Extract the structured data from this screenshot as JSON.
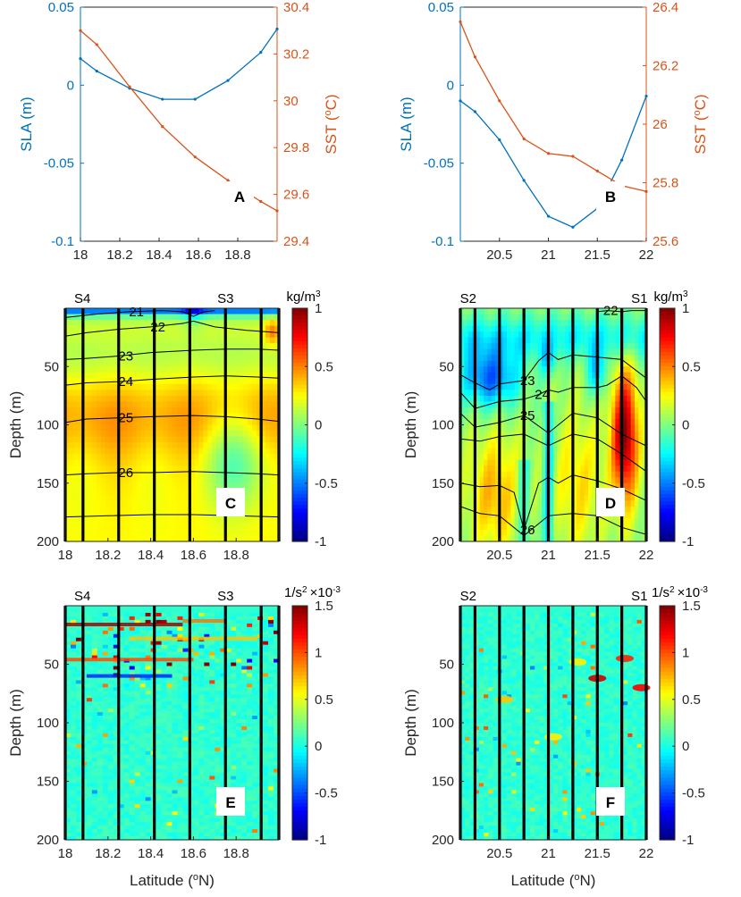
{
  "colors": {
    "sla": "#0072BD",
    "sst": "#D95319",
    "axis": "#262626",
    "contour": "#000000",
    "station": "#000000"
  },
  "shared": {
    "latitude_label": "Latitude (",
    "latitude_sup": "o",
    "latitude_unit": "N)",
    "sla_label": "SLA (m)",
    "sst_label_prefix": "SST (",
    "sst_label_sup": "o",
    "sst_label_suffix": "C)",
    "depth_label": "Depth (m)",
    "density_colorbar_unit": "kg/m",
    "density_colorbar_sup": "3",
    "n2_colorbar_unit": "1/s",
    "n2_colorbar_sup": "2",
    "n2_colorbar_scale": "×10",
    "n2_colorbar_scale_sup": "-3"
  },
  "chart_data": [
    {
      "panel": "A",
      "type": "line",
      "xlim": [
        18,
        19
      ],
      "xticks": [
        "18",
        "18.2",
        "18.4",
        "18.6",
        "18.8"
      ],
      "y_left": {
        "label": "SLA (m)",
        "ylim": [
          -0.1,
          0.05
        ],
        "ticks": [
          "0.05",
          "0",
          "-0.05",
          "-0.1"
        ]
      },
      "y_right": {
        "label": "SST (oC)",
        "ylim": [
          29.4,
          30.4
        ],
        "ticks": [
          "30.4",
          "30.2",
          "30",
          "29.8",
          "29.6",
          "29.4"
        ]
      },
      "series": [
        {
          "name": "SLA",
          "axis": "left",
          "x": [
            18.0,
            18.083,
            18.25,
            18.417,
            18.583,
            18.75,
            18.917,
            19.0
          ],
          "values": [
            0.017,
            0.009,
            -0.002,
            -0.009,
            -0.009,
            0.003,
            0.021,
            0.036
          ]
        },
        {
          "name": "SST",
          "axis": "right",
          "x": [
            18.0,
            18.083,
            18.25,
            18.417,
            18.583,
            18.75,
            18.917,
            19.0
          ],
          "values": [
            30.3,
            30.24,
            30.06,
            29.89,
            29.76,
            29.66,
            29.57,
            29.53
          ]
        }
      ]
    },
    {
      "panel": "B",
      "type": "line",
      "xlim": [
        20.1,
        22
      ],
      "xticks": [
        "20.5",
        "21",
        "21.5",
        "22"
      ],
      "y_left": {
        "label": "SLA (m)",
        "ylim": [
          -0.1,
          0.05
        ],
        "ticks": [
          "0.05",
          "0",
          "-0.05",
          "-0.1"
        ]
      },
      "y_right": {
        "label": "SST (oC)",
        "ylim": [
          25.6,
          26.4
        ],
        "ticks": [
          "26.4",
          "26.2",
          "26",
          "25.8",
          "25.6"
        ]
      },
      "series": [
        {
          "name": "SLA",
          "axis": "left",
          "x": [
            20.1,
            20.25,
            20.5,
            20.75,
            21.0,
            21.25,
            21.5,
            21.75,
            22.0
          ],
          "values": [
            -0.01,
            -0.017,
            -0.035,
            -0.061,
            -0.084,
            -0.091,
            -0.079,
            -0.048,
            -0.007
          ]
        },
        {
          "name": "SST",
          "axis": "right",
          "x": [
            20.1,
            20.25,
            20.5,
            20.75,
            21.0,
            21.25,
            21.5,
            21.75,
            22.0
          ],
          "values": [
            26.35,
            26.23,
            26.08,
            25.95,
            25.9,
            25.89,
            25.84,
            25.79,
            25.77
          ]
        }
      ]
    },
    {
      "panel": "C",
      "type": "heatmap",
      "field": "density anomaly",
      "xlim": [
        18,
        19
      ],
      "ylim": [
        0,
        200
      ],
      "xticks": [
        "18",
        "18.2",
        "18.4",
        "18.6",
        "18.8"
      ],
      "yticks": [
        "50",
        "100",
        "150",
        "200"
      ],
      "clim": [
        -1,
        1
      ],
      "colorbar_ticks": [
        "1",
        "0.5",
        "0",
        "-0.5",
        "-1"
      ],
      "stations": [
        18.0,
        18.083,
        18.25,
        18.417,
        18.583,
        18.75,
        18.917,
        19.0
      ],
      "station_labels": [
        {
          "name": "S4",
          "x": 18.08
        },
        {
          "name": "S3",
          "x": 18.75
        }
      ],
      "contours": [
        {
          "label": "21",
          "x": [
            18.0,
            18.15,
            18.3,
            18.45,
            18.55,
            18.6,
            18.65,
            18.7
          ],
          "depth": [
            8,
            5,
            3,
            2,
            3,
            7,
            3,
            2
          ]
        },
        {
          "label": "22",
          "x": [
            18.0,
            18.1,
            18.25,
            18.4,
            18.55,
            18.6,
            18.7,
            18.85,
            19.0
          ],
          "depth": [
            24,
            21,
            18,
            16,
            13,
            11,
            16,
            19,
            21
          ]
        },
        {
          "label": "23",
          "x": [
            18.0,
            18.1,
            18.25,
            18.4,
            18.6,
            18.75,
            18.9,
            19.0
          ],
          "depth": [
            44,
            43,
            41,
            38,
            36,
            35,
            35,
            36
          ]
        },
        {
          "label": "24",
          "x": [
            18.0,
            18.1,
            18.25,
            18.4,
            18.6,
            18.75,
            18.9,
            19.0
          ],
          "depth": [
            66,
            64,
            63,
            61,
            59,
            58,
            59,
            60
          ]
        },
        {
          "label": "25",
          "x": [
            18.0,
            18.1,
            18.25,
            18.4,
            18.6,
            18.75,
            18.9,
            19.0
          ],
          "depth": [
            98,
            95,
            94,
            93,
            92,
            93,
            95,
            97
          ]
        },
        {
          "label": "26",
          "x": [
            18.0,
            18.1,
            18.25,
            18.4,
            18.6,
            18.75,
            18.9,
            19.0
          ],
          "depth": [
            143,
            142,
            141,
            141,
            140,
            141,
            142,
            143
          ]
        },
        {
          "label": "",
          "x": [
            18.0,
            18.2,
            18.4,
            18.6,
            18.8,
            19.0
          ],
          "depth": [
            179,
            178,
            177,
            177,
            178,
            179
          ]
        }
      ]
    },
    {
      "panel": "D",
      "type": "heatmap",
      "field": "density anomaly",
      "xlim": [
        20.1,
        22
      ],
      "ylim": [
        0,
        200
      ],
      "xticks": [
        "20.5",
        "21",
        "21.5",
        "22"
      ],
      "yticks": [
        "50",
        "100",
        "150",
        "200"
      ],
      "clim": [
        -1,
        1
      ],
      "colorbar_ticks": [
        "1",
        "0.5",
        "0",
        "-0.5",
        "-1"
      ],
      "stations": [
        20.1,
        20.25,
        20.5,
        20.75,
        21.0,
        21.25,
        21.5,
        21.75,
        22.0
      ],
      "station_labels": [
        {
          "name": "S2",
          "x": 20.18
        },
        {
          "name": "S1",
          "x": 21.93
        }
      ],
      "contours": [
        {
          "label": "22",
          "x": [
            21.5,
            21.6,
            21.75,
            21.85,
            22.0
          ],
          "depth": [
            3,
            2,
            3,
            2,
            2
          ]
        },
        {
          "label": "23",
          "x": [
            20.1,
            20.25,
            20.4,
            20.5,
            20.75,
            20.9,
            21.0,
            21.1,
            21.25,
            21.5,
            21.75,
            22.0
          ],
          "depth": [
            57,
            64,
            70,
            65,
            62,
            45,
            38,
            44,
            40,
            42,
            44,
            60
          ]
        },
        {
          "label": "24",
          "x": [
            20.1,
            20.25,
            20.5,
            20.75,
            20.9,
            21.0,
            21.1,
            21.25,
            21.5,
            21.6,
            21.75,
            21.9,
            22.0
          ],
          "depth": [
            72,
            86,
            80,
            78,
            74,
            70,
            72,
            68,
            68,
            66,
            58,
            68,
            80
          ]
        },
        {
          "label": "25",
          "x": [
            20.1,
            20.25,
            20.5,
            20.75,
            21.0,
            21.25,
            21.5,
            21.75,
            22.0
          ],
          "depth": [
            90,
            102,
            98,
            92,
            107,
            90,
            94,
            108,
            118
          ]
        },
        {
          "label": "",
          "x": [
            20.1,
            20.3,
            20.5,
            20.75,
            21.0,
            21.25,
            21.5,
            21.75,
            22.0
          ],
          "depth": [
            112,
            114,
            110,
            108,
            118,
            108,
            112,
            125,
            140
          ]
        },
        {
          "label": "26",
          "x": [
            20.1,
            20.3,
            20.5,
            20.65,
            20.75,
            20.9,
            21.0,
            21.1,
            21.25,
            21.5,
            21.75,
            22.0
          ],
          "depth": [
            150,
            153,
            152,
            158,
            190,
            150,
            145,
            150,
            143,
            148,
            155,
            165
          ]
        },
        {
          "label": "",
          "x": [
            20.1,
            20.3,
            20.5,
            20.75,
            21.0,
            21.25,
            21.5,
            21.75,
            22.0
          ],
          "depth": [
            170,
            176,
            178,
            195,
            178,
            176,
            178,
            188,
            194
          ]
        }
      ]
    },
    {
      "panel": "E",
      "type": "heatmap",
      "field": "buoyancy frequency squared",
      "xlim": [
        18,
        19
      ],
      "ylim": [
        0,
        200
      ],
      "xticks": [
        "18",
        "18.2",
        "18.4",
        "18.6",
        "18.8"
      ],
      "yticks": [
        "50",
        "100",
        "150",
        "200"
      ],
      "clim": [
        -1,
        1.5
      ],
      "colorbar_ticks": [
        "1.5",
        "1",
        "0.5",
        "0",
        "-0.5",
        "-1"
      ],
      "stations": [
        18.0,
        18.083,
        18.25,
        18.417,
        18.583,
        18.75,
        18.917,
        19.0
      ],
      "station_labels": [
        {
          "name": "S4",
          "x": 18.08
        },
        {
          "name": "S3",
          "x": 18.75
        }
      ]
    },
    {
      "panel": "F",
      "type": "heatmap",
      "field": "buoyancy frequency squared",
      "xlim": [
        20.1,
        22
      ],
      "ylim": [
        0,
        200
      ],
      "xticks": [
        "20.5",
        "21",
        "21.5",
        "22"
      ],
      "yticks": [
        "50",
        "100",
        "150",
        "200"
      ],
      "clim": [
        -1,
        1.5
      ],
      "colorbar_ticks": [
        "1.5",
        "1",
        "0.5",
        "0",
        "-0.5",
        "-1"
      ],
      "stations": [
        20.1,
        20.25,
        20.5,
        20.75,
        21.0,
        21.25,
        21.5,
        21.75,
        22.0
      ],
      "station_labels": [
        {
          "name": "S2",
          "x": 20.18
        },
        {
          "name": "S1",
          "x": 21.93
        }
      ]
    }
  ]
}
